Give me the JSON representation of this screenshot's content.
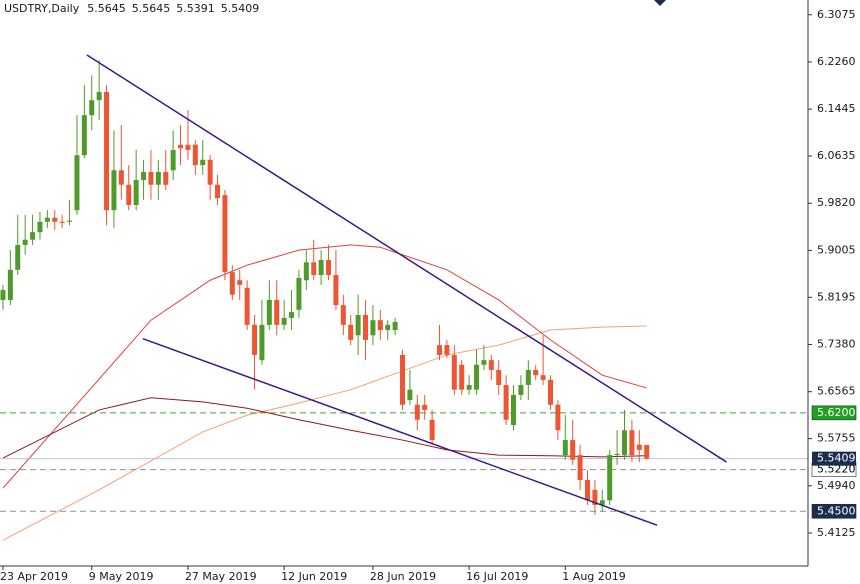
{
  "chart_data": {
    "type": "candlestick",
    "symbol": "USDTRY,Daily",
    "categories": [
      "23 Apr 2019",
      null,
      null,
      null,
      null,
      null,
      null,
      null,
      null,
      null,
      null,
      null,
      "9 May 2019",
      null,
      null,
      null,
      null,
      null,
      null,
      null,
      null,
      null,
      null,
      null,
      null,
      "27 May 2019",
      null,
      null,
      null,
      null,
      null,
      null,
      null,
      null,
      null,
      null,
      null,
      null,
      "12 Jun 2019",
      null,
      null,
      null,
      null,
      null,
      null,
      null,
      null,
      null,
      null,
      null,
      "28 Jun 2019",
      null,
      null,
      null,
      null,
      null,
      null,
      null,
      null,
      null,
      null,
      null,
      null,
      "16 Jul 2019",
      null,
      null,
      null,
      null,
      null,
      null,
      null,
      null,
      null,
      null,
      null,
      null,
      "1 Aug 2019",
      null,
      null,
      null,
      null,
      null,
      null,
      null,
      null,
      null,
      null,
      null
    ],
    "open": [
      5.815,
      5.815,
      5.867,
      5.91,
      5.919,
      5.932,
      5.95,
      5.957,
      5.95,
      5.95,
      5.97,
      6.065,
      6.134,
      6.16,
      6.174,
      5.97,
      6.039,
      6.014,
      5.979,
      6.022,
      6.036,
      6.014,
      6.036,
      6.039,
      6.083,
      6.083,
      6.083,
      6.048,
      6.057,
      6.014,
      5.996,
      5.863,
      5.849,
      5.836,
      5.772,
      5.711,
      5.772,
      5.815,
      5.772,
      5.784,
      5.798,
      5.849,
      5.88,
      5.858,
      5.884,
      5.858,
      5.806,
      5.772,
      5.754,
      5.789,
      5.754,
      5.78,
      5.763,
      5.763,
      5.72,
      5.642,
      5.634,
      5.634,
      5.608,
      5.737,
      5.737,
      5.72,
      5.703,
      5.66,
      5.66,
      5.703,
      5.711,
      5.694,
      5.668,
      5.599,
      5.651,
      5.668,
      5.694,
      5.685,
      5.677,
      5.634,
      5.547,
      5.573,
      5.547,
      5.504,
      5.487,
      5.461,
      5.469,
      5.547,
      5.547,
      5.59,
      5.565,
      5.5645
    ],
    "high": [
      5.841,
      5.901,
      5.962,
      5.962,
      5.962,
      5.967,
      5.97,
      5.97,
      5.962,
      5.988,
      6.134,
      6.186,
      6.203,
      6.229,
      6.186,
      6.108,
      6.117,
      6.048,
      6.074,
      6.057,
      6.074,
      6.057,
      6.074,
      6.108,
      6.117,
      6.143,
      6.091,
      6.091,
      6.065,
      6.031,
      6.005,
      5.875,
      5.867,
      5.849,
      5.789,
      5.815,
      5.849,
      5.849,
      5.815,
      5.832,
      5.867,
      5.901,
      5.919,
      5.901,
      5.91,
      5.901,
      5.824,
      5.789,
      5.824,
      5.815,
      5.806,
      5.798,
      5.78,
      5.784,
      5.729,
      5.694,
      5.651,
      5.651,
      5.625,
      5.772,
      5.746,
      5.737,
      5.711,
      5.685,
      5.729,
      5.737,
      5.72,
      5.711,
      5.685,
      5.668,
      5.685,
      5.711,
      5.703,
      5.754,
      5.685,
      5.642,
      5.616,
      5.608,
      5.565,
      5.521,
      5.504,
      5.487,
      5.556,
      5.59,
      5.625,
      5.608,
      5.59,
      5.5645
    ],
    "low": [
      5.798,
      5.806,
      5.858,
      5.893,
      5.91,
      5.919,
      5.939,
      5.936,
      5.939,
      5.944,
      5.962,
      6.06,
      6.108,
      6.126,
      5.944,
      5.939,
      5.988,
      5.97,
      5.97,
      5.988,
      5.988,
      5.988,
      6.005,
      6.022,
      6.048,
      6.057,
      6.031,
      6.031,
      5.988,
      5.979,
      5.849,
      5.815,
      5.815,
      5.763,
      5.66,
      5.703,
      5.763,
      5.754,
      5.763,
      5.763,
      5.784,
      5.832,
      5.849,
      5.841,
      5.849,
      5.798,
      5.754,
      5.737,
      5.72,
      5.711,
      5.737,
      5.746,
      5.746,
      5.754,
      5.625,
      5.634,
      5.59,
      5.608,
      5.565,
      5.711,
      5.715,
      5.651,
      5.651,
      5.651,
      5.651,
      5.694,
      5.677,
      5.651,
      5.599,
      5.59,
      5.642,
      5.642,
      5.677,
      5.668,
      5.625,
      5.573,
      5.539,
      5.53,
      5.487,
      5.461,
      5.444,
      5.449,
      5.461,
      5.53,
      5.539,
      5.535,
      5.535,
      5.5391
    ],
    "close": [
      5.832,
      5.867,
      5.91,
      5.919,
      5.932,
      5.95,
      5.957,
      5.95,
      5.948,
      5.952,
      6.065,
      6.134,
      6.16,
      6.174,
      5.97,
      6.039,
      6.014,
      5.979,
      6.022,
      6.036,
      6.014,
      6.036,
      6.014,
      6.074,
      6.077,
      6.074,
      6.048,
      6.057,
      6.014,
      5.991,
      5.863,
      5.824,
      5.841,
      5.772,
      5.72,
      5.772,
      5.815,
      5.772,
      5.784,
      5.794,
      5.853,
      5.88,
      5.858,
      5.884,
      5.858,
      5.806,
      5.772,
      5.746,
      5.789,
      5.746,
      5.78,
      5.763,
      5.772,
      5.777,
      5.634,
      5.66,
      5.608,
      5.625,
      5.573,
      5.72,
      5.72,
      5.66,
      5.66,
      5.668,
      5.703,
      5.711,
      5.694,
      5.668,
      5.608,
      5.651,
      5.668,
      5.694,
      5.685,
      5.677,
      5.634,
      5.59,
      5.573,
      5.539,
      5.504,
      5.469,
      5.461,
      5.469,
      5.547,
      5.549,
      5.59,
      5.547,
      5.556,
      5.5409
    ],
    "up_color": "#4e9a2a",
    "down_color": "#ee5533",
    "xlim": [
      -0.4,
      108.8
    ],
    "ylim": [
      5.3555,
      6.333
    ],
    "yticks": [
      6.3075,
      {
        "value": 6.226,
        "label": "6.2260"
      },
      6.1445,
      6.0635,
      {
        "value": 5.982,
        "label": "5.9820"
      },
      5.9005,
      5.8195,
      {
        "value": 5.738,
        "label": "5.7380"
      },
      5.6565,
      5.5755,
      {
        "value": 5.494,
        "label": "5.4940"
      },
      5.4125
    ],
    "moving_averages": [
      {
        "color": "#f5a070",
        "x": [
          0,
          13,
          27,
          33,
          40,
          47,
          60,
          67,
          74,
          81,
          87
        ],
        "values": [
          5.4,
          5.487,
          5.587,
          5.616,
          5.637,
          5.66,
          5.72,
          5.737,
          5.763,
          5.768,
          5.77
        ]
      },
      {
        "color": "#d8453a",
        "x": [
          0,
          20,
          28,
          33,
          40,
          47,
          51,
          60,
          67,
          74,
          81,
          87
        ],
        "values": [
          5.49,
          5.78,
          5.849,
          5.875,
          5.901,
          5.91,
          5.906,
          5.867,
          5.815,
          5.746,
          5.685,
          5.663
        ]
      },
      {
        "color": "#8b1a1a",
        "x": [
          0,
          13,
          20,
          27,
          33,
          40,
          47,
          54,
          60,
          67,
          74,
          81,
          87
        ],
        "values": [
          5.542,
          5.625,
          5.646,
          5.639,
          5.628,
          5.608,
          5.59,
          5.573,
          5.556,
          5.547,
          5.546,
          5.544,
          5.546
        ]
      }
    ],
    "trendlines": [
      {
        "color": "#3a1a8a",
        "x": [
          11.35,
          97.8
        ],
        "values": [
          6.238,
          5.535
        ]
      },
      {
        "color": "#3a1a8a",
        "x": [
          18.9,
          88.4
        ],
        "values": [
          5.748,
          5.426
        ]
      }
    ],
    "levels": [
      {
        "value": 5.62,
        "label": "5.6200",
        "color": "#40a040",
        "box": "#20a020",
        "text_color": "#ffffff"
      },
      {
        "value": 5.522,
        "label": "5.5220",
        "color": "#909090",
        "box": "#ffffff",
        "text_color": "#000000"
      },
      {
        "value": 5.45,
        "label": "5.4500",
        "color": "#909090",
        "box": "#1b2d4f",
        "text_color": "#ffffff"
      }
    ],
    "bid_line": {
      "color": "#b8c4d8",
      "box": "#1b2d4f",
      "text_color": "#ffffff"
    }
  }
}
